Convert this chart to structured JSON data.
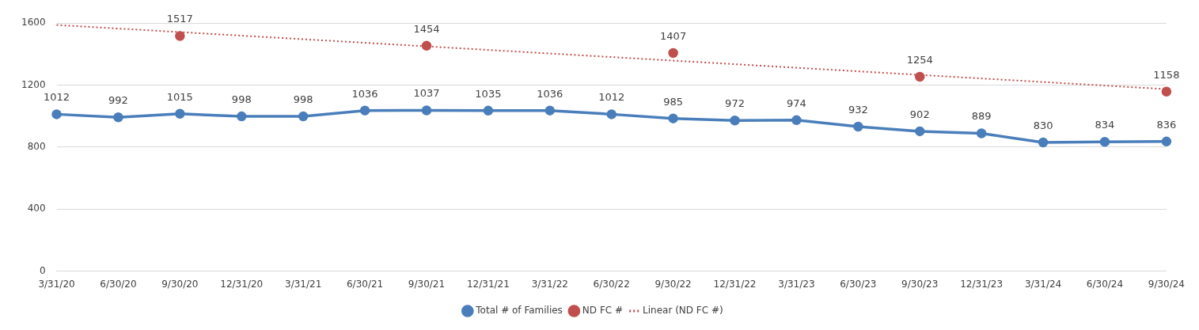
{
  "chart_data": {
    "type": "line",
    "categories": [
      "3/31/20",
      "6/30/20",
      "9/30/20",
      "12/31/20",
      "3/31/21",
      "6/30/21",
      "9/30/21",
      "12/31/21",
      "3/31/22",
      "6/30/22",
      "9/30/22",
      "12/31/22",
      "3/31/23",
      "6/30/23",
      "9/30/23",
      "12/31/23",
      "3/31/24",
      "6/30/24",
      "9/30/24"
    ],
    "series": [
      {
        "name": "Total # of Families",
        "color": "#4a7ebb",
        "marker": "circle",
        "line_style": "solid",
        "values": [
          1012,
          992,
          1015,
          998,
          998,
          1036,
          1037,
          1035,
          1036,
          1012,
          985,
          972,
          974,
          932,
          902,
          889,
          830,
          834,
          836
        ],
        "value_labels": [
          "1012",
          "992",
          "1015",
          "998",
          "998",
          "1036",
          "1037",
          "1035",
          "1036",
          "1012",
          "985",
          "972",
          "974",
          "932",
          "902",
          "889",
          "830",
          "834",
          "836"
        ]
      },
      {
        "name": "ND FC #",
        "type": "scatter",
        "color": "#c0504d",
        "marker": "circle",
        "x": [
          "9/30/20",
          "9/30/21",
          "9/30/22",
          "9/30/23",
          "9/30/24"
        ],
        "values": [
          1517,
          1454,
          1407,
          1254,
          1158
        ],
        "value_labels": [
          "1517",
          "1454",
          "1407",
          "1254",
          "1158"
        ]
      },
      {
        "name": "Linear (ND FC #)",
        "type": "line",
        "color": "#c0504d",
        "marker": "none",
        "line_style": "dotted",
        "x": [
          "3/31/20",
          "9/30/24"
        ],
        "values": [
          1588,
          1174
        ]
      }
    ],
    "ylim": [
      0,
      1600
    ],
    "yticks": [
      0,
      400,
      800,
      1200,
      1600
    ],
    "grid": "y",
    "legend": "bottom"
  }
}
